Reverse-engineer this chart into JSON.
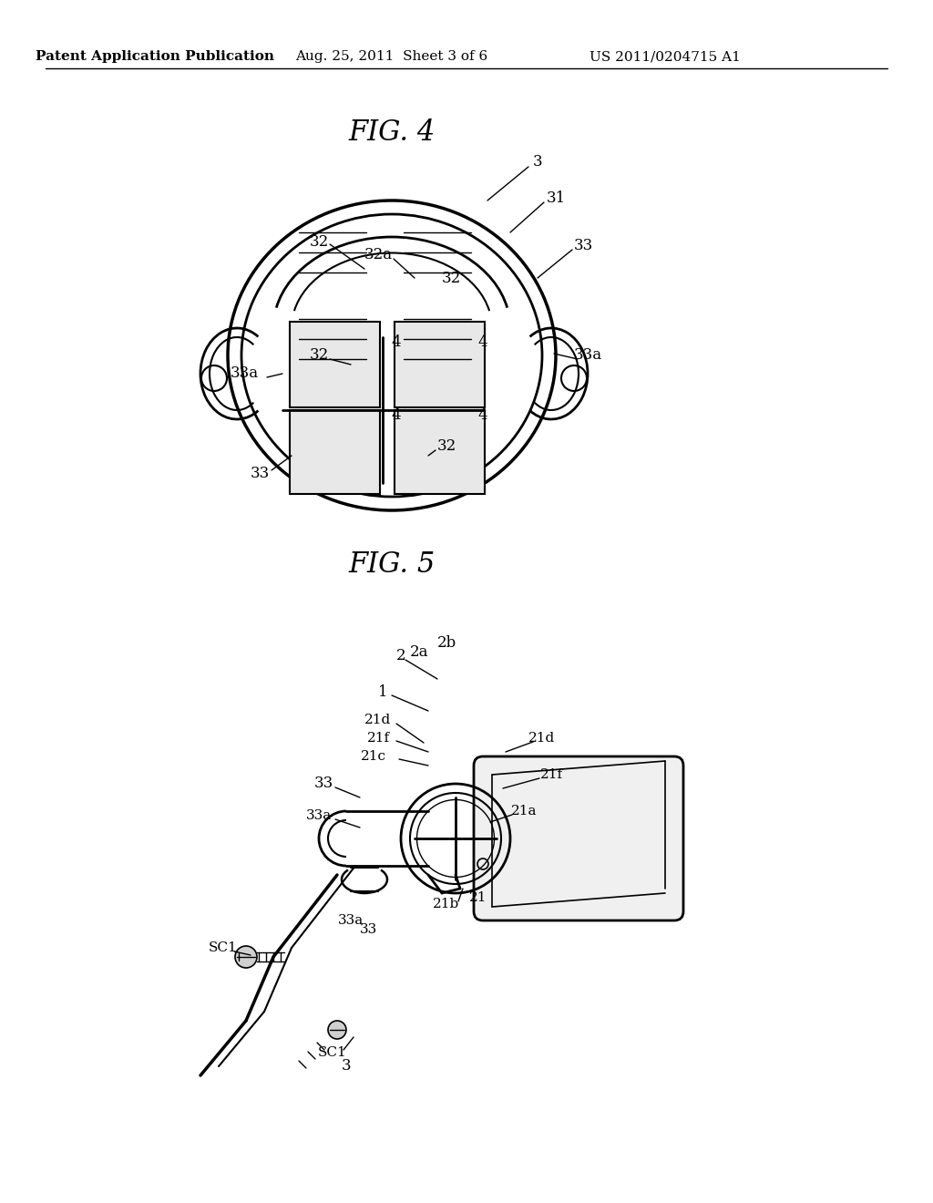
{
  "background_color": "#ffffff",
  "header_left": "Patent Application Publication",
  "header_mid": "Aug. 25, 2011  Sheet 3 of 6",
  "header_right": "US 2011/0204715 A1",
  "fig4_title": "FIG. 4",
  "fig5_title": "FIG. 5",
  "text_color": "#000000",
  "line_color": "#000000",
  "fig_width": 10.24,
  "fig_height": 13.2
}
